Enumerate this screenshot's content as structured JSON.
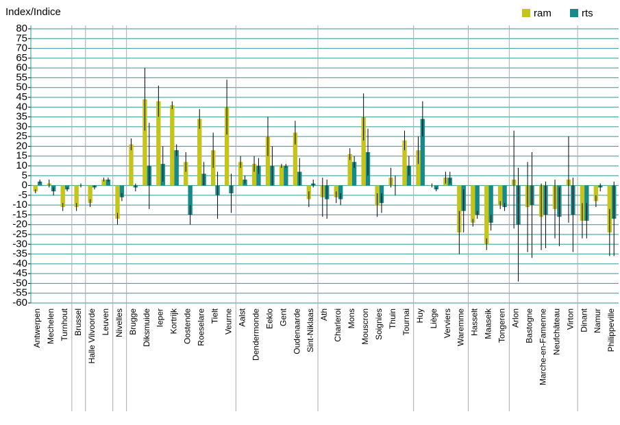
{
  "chart_data": {
    "type": "bar",
    "title": "Index/Indice",
    "categories": [
      "Antwerpen",
      "Mechelen",
      "Turnhout",
      "Brussel",
      "Halle Vilvoorde",
      "Leuven",
      "Nivelles",
      "Brugge",
      "Diksmuide",
      "Ieper",
      "Kortrijk",
      "Oostende",
      "Roeselare",
      "Tielt",
      "Veurne",
      "Aalst",
      "Dendermonde",
      "Eeklo",
      "Gent",
      "Oudenaarde",
      "Sint-Niklaas",
      "Ath",
      "Charleroi",
      "Mons",
      "Mouscron",
      "Soignies",
      "Thuin",
      "Tournai",
      "Huy",
      "Liège",
      "Verviers",
      "Waremme",
      "Hasselt",
      "Maaseik",
      "Tongeren",
      "Arlon",
      "Bastogne",
      "Marche-en-Famenne",
      "Neufchâteau",
      "Virton",
      "Dinant",
      "Namur",
      "Philippeville"
    ],
    "series": [
      {
        "name": "ram",
        "color": "#c4c41a",
        "values": [
          -3,
          1,
          -11,
          -11,
          -9,
          3,
          -17,
          21,
          44,
          43,
          41,
          12,
          34,
          18,
          40,
          12,
          11,
          25,
          10,
          27,
          -7,
          -6,
          -6,
          16,
          35,
          -10,
          4,
          23,
          18,
          0,
          4,
          -24,
          -19,
          -30,
          -10,
          3,
          -11,
          -16,
          -12,
          3,
          -18,
          -8,
          -24
        ],
        "errors": [
          1,
          2,
          2,
          2,
          2,
          1,
          3,
          3,
          16,
          8,
          2,
          5,
          5,
          9,
          14,
          3,
          4,
          10,
          1,
          6,
          4,
          10,
          3,
          3,
          12,
          6,
          5,
          5,
          7,
          1,
          3,
          11,
          2,
          3,
          2,
          25,
          23,
          17,
          15,
          22,
          9,
          3,
          12
        ]
      },
      {
        "name": "rts",
        "color": "#168a8a",
        "values": [
          2,
          -3,
          -2,
          0,
          -1,
          3,
          -6,
          -1,
          10,
          11,
          18,
          -15,
          6,
          -5,
          -4,
          3,
          10,
          10,
          10,
          7,
          1,
          -7,
          -7,
          12,
          17,
          -9,
          0,
          10,
          34,
          -2,
          4,
          -13,
          -15,
          -19,
          -11,
          -20,
          -10,
          -15,
          -16,
          -15,
          -18,
          -1,
          -17
        ],
        "errors": [
          1,
          2,
          1,
          1,
          1,
          1,
          2,
          2,
          22,
          9,
          3,
          5,
          6,
          12,
          10,
          2,
          4,
          10,
          1,
          7,
          2,
          10,
          3,
          3,
          12,
          5,
          5,
          5,
          9,
          1,
          3,
          11,
          2,
          4,
          2,
          29,
          27,
          17,
          15,
          19,
          9,
          2,
          19
        ]
      }
    ],
    "ylim": [
      -60,
      80
    ],
    "yticks": [
      -60,
      -55,
      -50,
      -45,
      -40,
      -35,
      -30,
      -25,
      -20,
      -15,
      -10,
      -5,
      0,
      5,
      10,
      15,
      20,
      25,
      30,
      35,
      40,
      45,
      50,
      55,
      60,
      65,
      70,
      75,
      80
    ],
    "grid": true,
    "legend": "top-right"
  }
}
